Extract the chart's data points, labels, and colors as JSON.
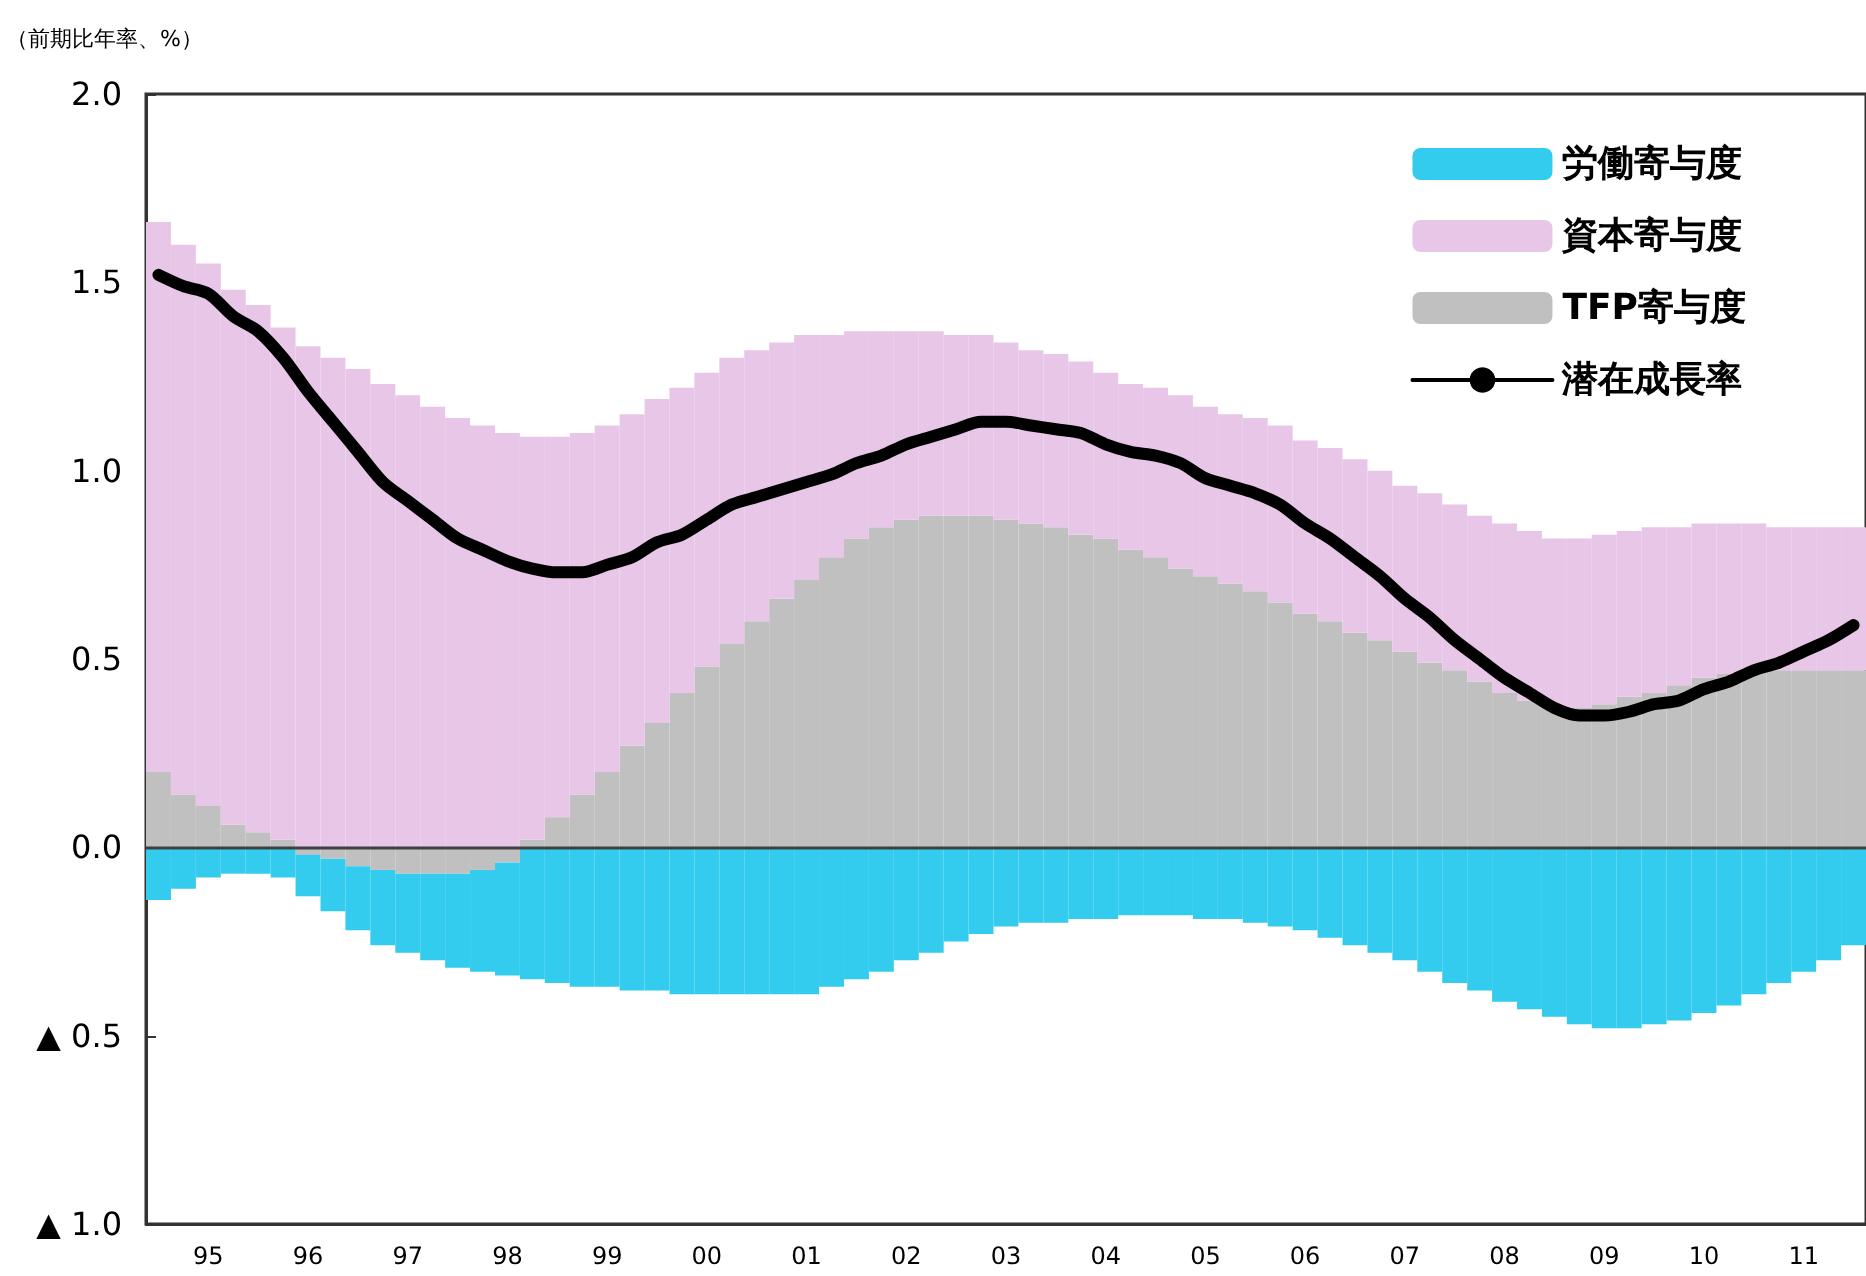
{
  "chart_data": {
    "type": "bar",
    "stacked": true,
    "ylabel": "（前期比年率、%）",
    "categories": [
      null,
      null,
      "95",
      null,
      null,
      null,
      "96",
      null,
      null,
      null,
      "97",
      null,
      null,
      null,
      "98",
      null,
      null,
      null,
      "99",
      null,
      null,
      null,
      "00",
      null,
      null,
      null,
      "01",
      null,
      null,
      null,
      "02",
      null,
      null,
      null,
      "03",
      null,
      null,
      null,
      "04",
      null,
      null,
      null,
      "05",
      null,
      null,
      null,
      "06",
      null,
      null,
      null,
      "07",
      null,
      null,
      null,
      "08",
      null,
      null,
      null,
      "09",
      null,
      null,
      null,
      "10",
      null,
      null,
      null,
      "11",
      null,
      null
    ],
    "ylim": [
      -1.0,
      2.0
    ],
    "yticks": [
      {
        "value": -1.0,
        "label": "▲ 1.0"
      },
      {
        "value": -0.5,
        "label": "▲ 0.5"
      },
      {
        "value": 0.0,
        "label": "0.0"
      },
      {
        "value": 0.5,
        "label": "0.5"
      },
      {
        "value": 1.0,
        "label": "1.0"
      },
      {
        "value": 1.5,
        "label": "1.5"
      },
      {
        "value": 2.0,
        "label": "2.0"
      }
    ],
    "grid": false,
    "legend": "top right",
    "marker": "none",
    "line_style": "solid",
    "ref_lines": [
      {
        "axis": "y",
        "value": 0,
        "label": null,
        "color": "#404040"
      }
    ],
    "series": [
      {
        "name": "TFP寄与度",
        "color": "#c0c0c0",
        "values": [
          0.2,
          0.14,
          0.11,
          0.06,
          0.04,
          0.02,
          -0.02,
          -0.03,
          -0.05,
          -0.06,
          -0.07,
          -0.07,
          -0.07,
          -0.06,
          -0.04,
          0.02,
          0.08,
          0.14,
          0.2,
          0.27,
          0.33,
          0.41,
          0.48,
          0.54,
          0.6,
          0.66,
          0.71,
          0.77,
          0.82,
          0.85,
          0.87,
          0.88,
          0.88,
          0.88,
          0.87,
          0.86,
          0.85,
          0.83,
          0.82,
          0.79,
          0.77,
          0.74,
          0.72,
          0.7,
          0.68,
          0.65,
          0.62,
          0.6,
          0.57,
          0.55,
          0.52,
          0.49,
          0.47,
          0.44,
          0.41,
          0.39,
          0.37,
          0.37,
          0.38,
          0.4,
          0.41,
          0.43,
          0.45,
          0.46,
          0.47,
          0.47,
          0.47,
          0.47,
          0.47
        ]
      },
      {
        "name": "資本寄与度",
        "color": "#e8c6e8",
        "values": [
          1.46,
          1.46,
          1.44,
          1.42,
          1.4,
          1.36,
          1.33,
          1.3,
          1.27,
          1.23,
          1.2,
          1.17,
          1.14,
          1.12,
          1.1,
          1.07,
          1.01,
          0.96,
          0.92,
          0.88,
          0.86,
          0.81,
          0.78,
          0.76,
          0.72,
          0.68,
          0.65,
          0.59,
          0.55,
          0.52,
          0.5,
          0.49,
          0.48,
          0.48,
          0.47,
          0.46,
          0.46,
          0.46,
          0.44,
          0.44,
          0.45,
          0.46,
          0.45,
          0.45,
          0.46,
          0.47,
          0.46,
          0.46,
          0.46,
          0.45,
          0.44,
          0.45,
          0.44,
          0.44,
          0.45,
          0.45,
          0.45,
          0.45,
          0.45,
          0.44,
          0.44,
          0.42,
          0.41,
          0.4,
          0.39,
          0.38,
          0.38,
          0.38,
          0.38
        ]
      },
      {
        "name": "労働寄与度",
        "color": "#33ccee",
        "values": [
          -0.14,
          -0.11,
          -0.08,
          -0.07,
          -0.07,
          -0.08,
          -0.11,
          -0.14,
          -0.17,
          -0.2,
          -0.21,
          -0.23,
          -0.25,
          -0.27,
          -0.3,
          -0.35,
          -0.36,
          -0.37,
          -0.37,
          -0.38,
          -0.38,
          -0.39,
          -0.39,
          -0.39,
          -0.39,
          -0.39,
          -0.39,
          -0.37,
          -0.35,
          -0.33,
          -0.3,
          -0.28,
          -0.25,
          -0.23,
          -0.21,
          -0.2,
          -0.2,
          -0.19,
          -0.19,
          -0.18,
          -0.18,
          -0.18,
          -0.19,
          -0.19,
          -0.2,
          -0.21,
          -0.22,
          -0.24,
          -0.26,
          -0.28,
          -0.3,
          -0.33,
          -0.36,
          -0.38,
          -0.41,
          -0.43,
          -0.45,
          -0.47,
          -0.48,
          -0.48,
          -0.47,
          -0.46,
          -0.44,
          -0.42,
          -0.39,
          -0.36,
          -0.33,
          -0.3,
          -0.26
        ]
      },
      {
        "name": "潜在成長率",
        "type": "line",
        "color": "#000000",
        "values": [
          1.52,
          1.49,
          1.47,
          1.41,
          1.37,
          1.3,
          1.21,
          1.13,
          1.05,
          0.97,
          0.92,
          0.87,
          0.82,
          0.79,
          0.76,
          0.74,
          0.73,
          0.73,
          0.75,
          0.77,
          0.81,
          0.83,
          0.87,
          0.91,
          0.93,
          0.95,
          0.97,
          0.99,
          1.02,
          1.04,
          1.07,
          1.09,
          1.11,
          1.13,
          1.13,
          1.12,
          1.11,
          1.1,
          1.07,
          1.05,
          1.04,
          1.02,
          0.98,
          0.96,
          0.94,
          0.91,
          0.86,
          0.82,
          0.77,
          0.72,
          0.66,
          0.61,
          0.55,
          0.5,
          0.45,
          0.41,
          0.37,
          0.35,
          0.35,
          0.36,
          0.38,
          0.39,
          0.42,
          0.44,
          0.47,
          0.49,
          0.52,
          0.55,
          0.59
        ]
      }
    ]
  }
}
